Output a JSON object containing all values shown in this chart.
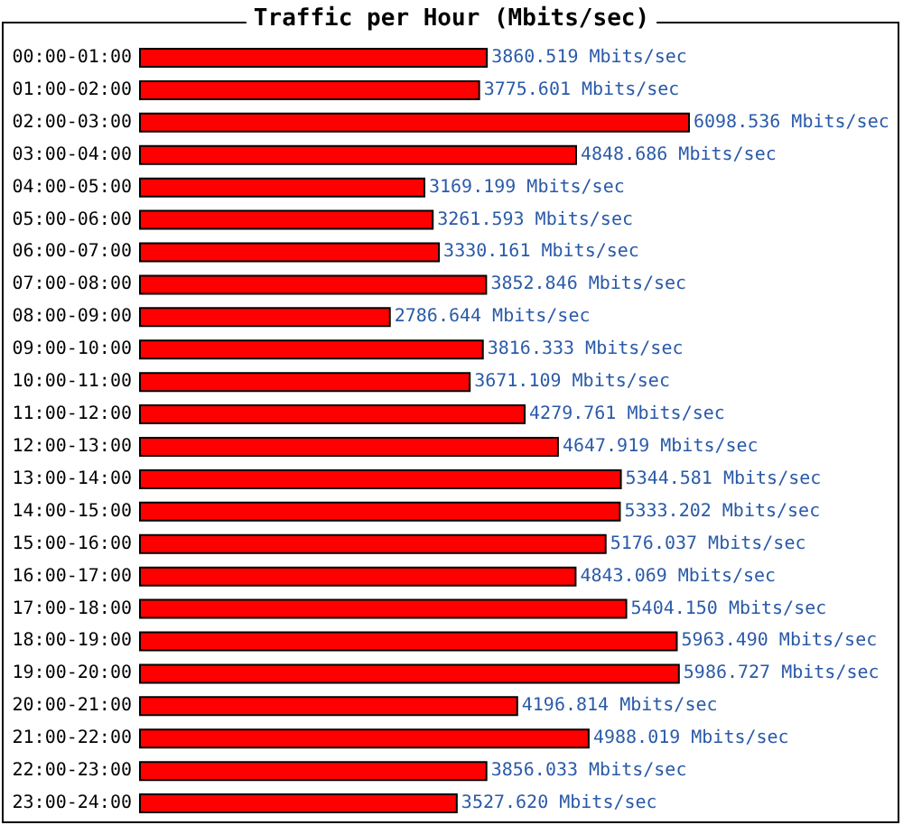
{
  "chart_data": {
    "type": "bar",
    "orientation": "horizontal",
    "relative": false,
    "title": "Traffic per Hour (Mbits/sec)",
    "categories": [
      "00:00-01:00",
      "01:00-02:00",
      "02:00-03:00",
      "03:00-04:00",
      "04:00-05:00",
      "05:00-06:00",
      "06:00-07:00",
      "07:00-08:00",
      "08:00-09:00",
      "09:00-10:00",
      "10:00-11:00",
      "11:00-12:00",
      "12:00-13:00",
      "13:00-14:00",
      "14:00-15:00",
      "15:00-16:00",
      "16:00-17:00",
      "17:00-18:00",
      "18:00-19:00",
      "19:00-20:00",
      "20:00-21:00",
      "21:00-22:00",
      "22:00-23:00",
      "23:00-24:00"
    ],
    "values": [
      3860.519,
      3775.601,
      6098.536,
      4848.686,
      3169.199,
      3261.593,
      3330.161,
      3852.846,
      2786.644,
      3816.333,
      3671.109,
      4279.761,
      4647.919,
      5344.581,
      5333.202,
      5176.037,
      4843.069,
      5404.15,
      5963.49,
      5986.727,
      4196.814,
      4988.019,
      3856.033,
      3527.62
    ],
    "value_labels": [
      "3860.519 Mbits/sec",
      "3775.601 Mbits/sec",
      "6098.536 Mbits/sec",
      "4848.686 Mbits/sec",
      "3169.199 Mbits/sec",
      "3261.593 Mbits/sec",
      "3330.161 Mbits/sec",
      "3852.846 Mbits/sec",
      "2786.644 Mbits/sec",
      "3816.333 Mbits/sec",
      "3671.109 Mbits/sec",
      "4279.761 Mbits/sec",
      "4647.919 Mbits/sec",
      "5344.581 Mbits/sec",
      "5333.202 Mbits/sec",
      "5176.037 Mbits/sec",
      "4843.069 Mbits/sec",
      "5404.150 Mbits/sec",
      "5963.490 Mbits/sec",
      "5986.727 Mbits/sec",
      "4196.814 Mbits/sec",
      "4988.019 Mbits/sec",
      "3856.033 Mbits/sec",
      "3527.620 Mbits/sec"
    ],
    "color": "#ff0000",
    "grid": false
  }
}
